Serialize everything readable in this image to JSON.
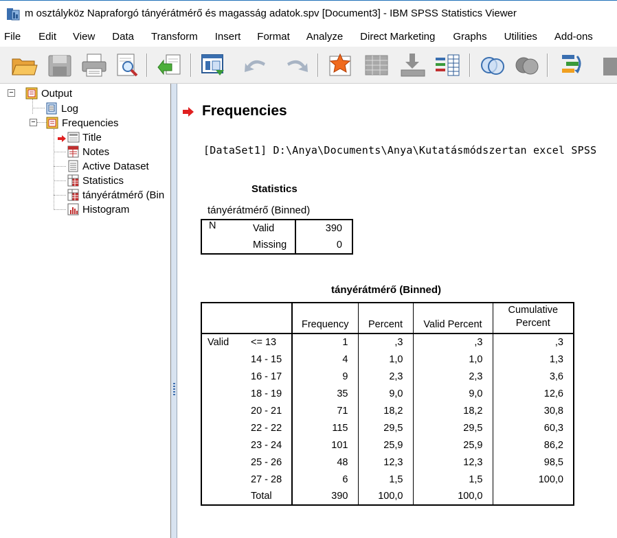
{
  "window": {
    "title": "m osztályköz  Napraforgó tányérátmérő és magasság adatok.spv [Document3] - IBM SPSS Statistics Viewer"
  },
  "menu": [
    "File",
    "Edit",
    "View",
    "Data",
    "Transform",
    "Insert",
    "Format",
    "Analyze",
    "Direct Marketing",
    "Graphs",
    "Utilities",
    "Add-ons"
  ],
  "toolbar": {
    "icons": [
      "open-folder-icon",
      "save-icon",
      "print-icon",
      "print-preview-icon",
      "export-icon",
      "recall-dialog-icon",
      "undo-icon",
      "redo-icon",
      "goto-data-icon",
      "goto-case-icon",
      "goto-variable-icon",
      "variables-icon",
      "select-cases-icon",
      "weight-cases-icon",
      "split-file-icon",
      "show-all-variables-icon"
    ]
  },
  "outline": {
    "root": "Output",
    "log": "Log",
    "frequencies": "Frequencies",
    "children": [
      "Title",
      "Notes",
      "Active Dataset",
      "Statistics",
      "tányérátmérő (Bin",
      "Histogram"
    ]
  },
  "content": {
    "heading": "Frequencies",
    "dataset_line": "[DataSet1] D:\\Anya\\Documents\\Anya\\Kutatásmódszertan excel SPSS",
    "stats_table": {
      "title": "Statistics",
      "variable": "tányérátmérő (Binned)",
      "n_label": "N",
      "valid_label": "Valid",
      "valid_value": "390",
      "missing_label": "Missing",
      "missing_value": "0"
    },
    "freq_table": {
      "title": "tányérátmérő (Binned)",
      "headers": [
        "Frequency",
        "Percent",
        "Valid Percent",
        "Cumulative Percent"
      ],
      "group_label": "Valid",
      "rows": [
        {
          "label": "<= 13",
          "freq": "1",
          "pct": ",3",
          "valid": ",3",
          "cum": ",3"
        },
        {
          "label": "14 - 15",
          "freq": "4",
          "pct": "1,0",
          "valid": "1,0",
          "cum": "1,3"
        },
        {
          "label": "16 - 17",
          "freq": "9",
          "pct": "2,3",
          "valid": "2,3",
          "cum": "3,6"
        },
        {
          "label": "18 - 19",
          "freq": "35",
          "pct": "9,0",
          "valid": "9,0",
          "cum": "12,6"
        },
        {
          "label": "20 - 21",
          "freq": "71",
          "pct": "18,2",
          "valid": "18,2",
          "cum": "30,8"
        },
        {
          "label": "22 - 22",
          "freq": "115",
          "pct": "29,5",
          "valid": "29,5",
          "cum": "60,3"
        },
        {
          "label": "23 - 24",
          "freq": "101",
          "pct": "25,9",
          "valid": "25,9",
          "cum": "86,2"
        },
        {
          "label": "25 - 26",
          "freq": "48",
          "pct": "12,3",
          "valid": "12,3",
          "cum": "98,5"
        },
        {
          "label": "27 - 28",
          "freq": "6",
          "pct": "1,5",
          "valid": "1,5",
          "cum": "100,0"
        },
        {
          "label": "Total",
          "freq": "390",
          "pct": "100,0",
          "valid": "100,0",
          "cum": ""
        }
      ]
    }
  }
}
